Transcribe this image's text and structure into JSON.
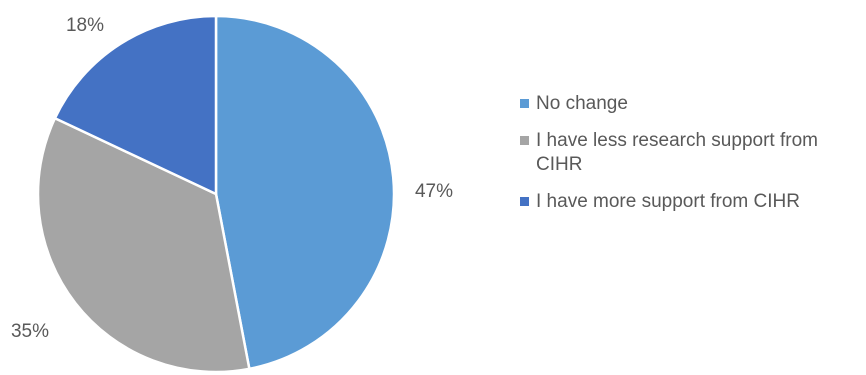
{
  "chart_data": {
    "type": "pie",
    "categories": [
      "No change",
      "I have less research support from CIHR",
      "I have more support from CIHR"
    ],
    "values": [
      47,
      35,
      18
    ],
    "data_labels": [
      "47%",
      "35%",
      "18%"
    ],
    "colors": [
      "#5B9BD5",
      "#A5A5A5",
      "#4472C4"
    ],
    "title": "",
    "legend_position": "right"
  }
}
